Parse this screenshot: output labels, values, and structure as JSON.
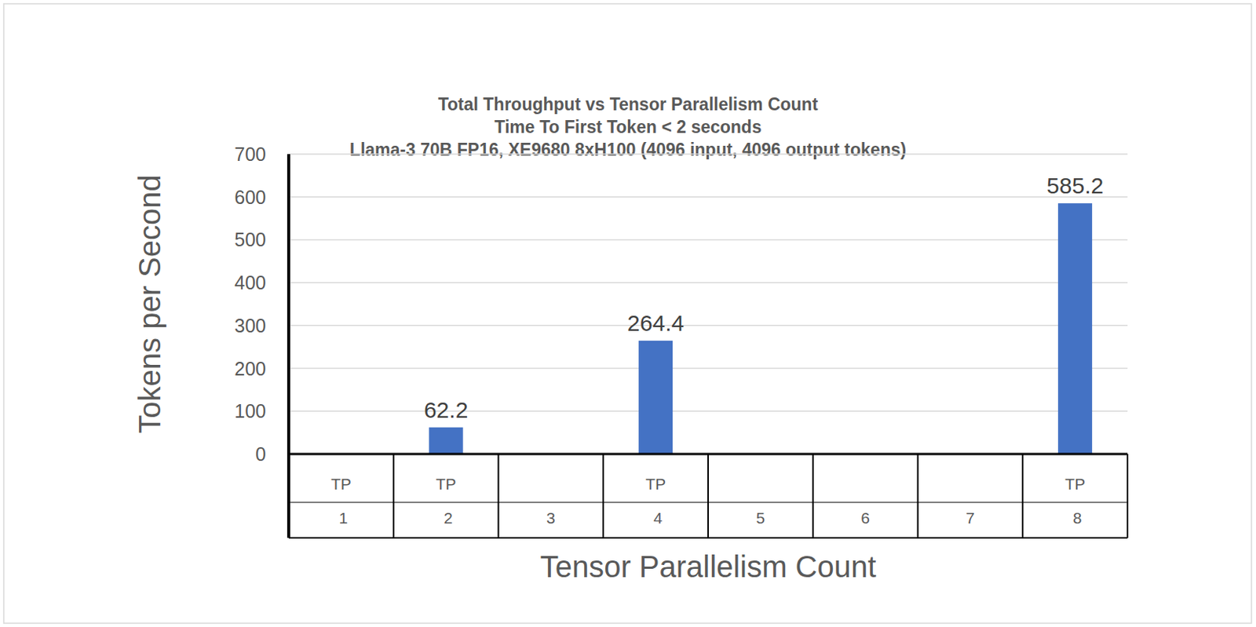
{
  "chart_data": {
    "type": "bar",
    "title": "Total Throughput vs Tensor Parallelism Count",
    "subtitle": [
      "Time To First Token < 2 seconds",
      "Llama-3 70B FP16, XE9680 8xH100 (4096 input, 4096 output tokens)"
    ],
    "x_label": "Tensor Parallelism Count",
    "y_label": "Tokens per Second",
    "categories": [
      "TP 1",
      "TP 2",
      "3",
      "TP 4",
      "5",
      "6",
      "7",
      "TP 8"
    ],
    "values": [
      null,
      62.2,
      null,
      264.4,
      null,
      null,
      null,
      585.2
    ],
    "color": "#4472c4",
    "ylim": [
      0,
      700
    ],
    "yticks": [
      0,
      100,
      200,
      300,
      400,
      500,
      600,
      700
    ],
    "grid": true,
    "data_labels": true
  }
}
